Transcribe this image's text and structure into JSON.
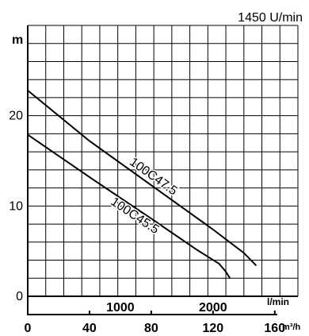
{
  "chart_data": {
    "type": "line",
    "title": "1450 U/min",
    "ylabel": "m",
    "xlabel_primary": "l/min",
    "xlabel_secondary": "m³/h",
    "y_ticks": [
      "0",
      "10",
      "20"
    ],
    "x_ticks_lmin": [
      "1000",
      "2000"
    ],
    "x_ticks_m3h": [
      "0",
      "40",
      "80",
      "120",
      "160"
    ],
    "xlim_m3h": [
      0,
      175
    ],
    "ylim_m": [
      0,
      30
    ],
    "grid": true,
    "series": [
      {
        "name": "100C47.5",
        "x_m3h": [
          0,
          40,
          80,
          120,
          140,
          148
        ],
        "y_m": [
          22.8,
          17.2,
          12.3,
          7.4,
          4.8,
          3.4
        ]
      },
      {
        "name": "100C45.5",
        "x_m3h": [
          0,
          40,
          80,
          110,
          124,
          128,
          131
        ],
        "y_m": [
          17.9,
          13.2,
          8.6,
          5.1,
          3.6,
          2.8,
          2.0
        ]
      }
    ]
  }
}
